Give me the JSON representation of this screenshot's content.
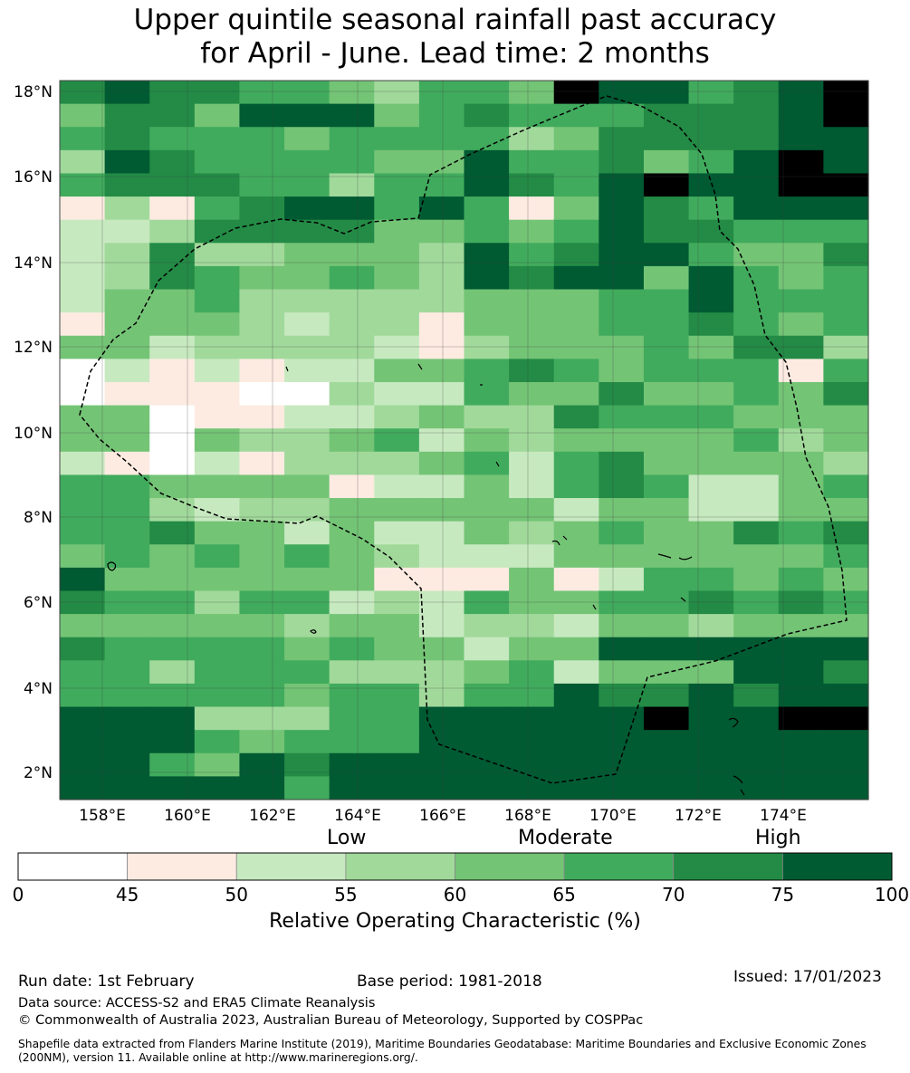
{
  "title": {
    "line1": "Upper quintile seasonal rainfall past accuracy",
    "line2": "for April - June. Lead time: 2 months"
  },
  "map": {
    "lat_labels": [
      "18°N",
      "16°N",
      "14°N",
      "12°N",
      "10°N",
      "8°N",
      "6°N",
      "4°N",
      "2°N"
    ],
    "lon_labels": [
      "158°E",
      "160°E",
      "162°E",
      "164°E",
      "166°E",
      "168°E",
      "170°E",
      "172°E",
      "174°E"
    ],
    "lon_range": [
      157.0,
      176.0
    ],
    "lat_range": [
      1.4,
      18.3
    ],
    "grid_degrees": 0.833,
    "eez_boundary_style": "dashed black",
    "grid_rows_north_to_south": [
      "676655435548775678",
      "466477745655566678",
      "565554555534666677",
      "376555544755645787",
      "566655355765787788",
      "131567757514765777",
      "223666644545766555",
      "236334443756775446",
      "236544543767747545",
      "244533333444557555",
      "144432331444556545",
      "442333321344454663",
      "021212244565455515",
      "011100322544644546",
      "440112234336555444",
      "440433452434444534",
      "210213334525644443",
      "554444122425652245",
      "553233444442442244",
      "556442422434544656",
      "454545432224444445",
      "744444411141255454",
      "655355232544556565",
      "444443442332443444",
      "655554544244777777",
      "553555333452444776",
      "555554553557667677",
      "777333557777787788",
      "777545557777777777",
      "775476777777777777",
      "777775777777777777"
    ]
  },
  "colorbar": {
    "category_labels": [
      "Low",
      "Moderate",
      "High"
    ],
    "ticks": [
      "0",
      "45",
      "50",
      "55",
      "60",
      "65",
      "70",
      "75",
      "100"
    ],
    "colors": [
      "#ffffff",
      "#fdebe2",
      "#c7e9c0",
      "#a1d99b",
      "#74c476",
      "#41ab5d",
      "#238b45",
      "#005a32"
    ],
    "label": "Relative Operating Characteristic (%)"
  },
  "footer": {
    "run_date": "Run date: 1st February",
    "base_period": "Base period: 1981-2018",
    "issued": "Issued: 17/01/2023",
    "data_source": "Data source: ACCESS-S2 and ERA5 Climate Reanalysis",
    "copyright": "© Commonwealth of Australia 2023, Australian Bureau of Meteorology, Supported by COSPPac",
    "shapefile": "Shapefile data extracted from Flanders Marine Institute (2019), Maritime Boundaries Geodatabase: Maritime Boundaries and Exclusive Economic Zones (200NM), version 11. Available online at http://www.marineregions.org/."
  }
}
